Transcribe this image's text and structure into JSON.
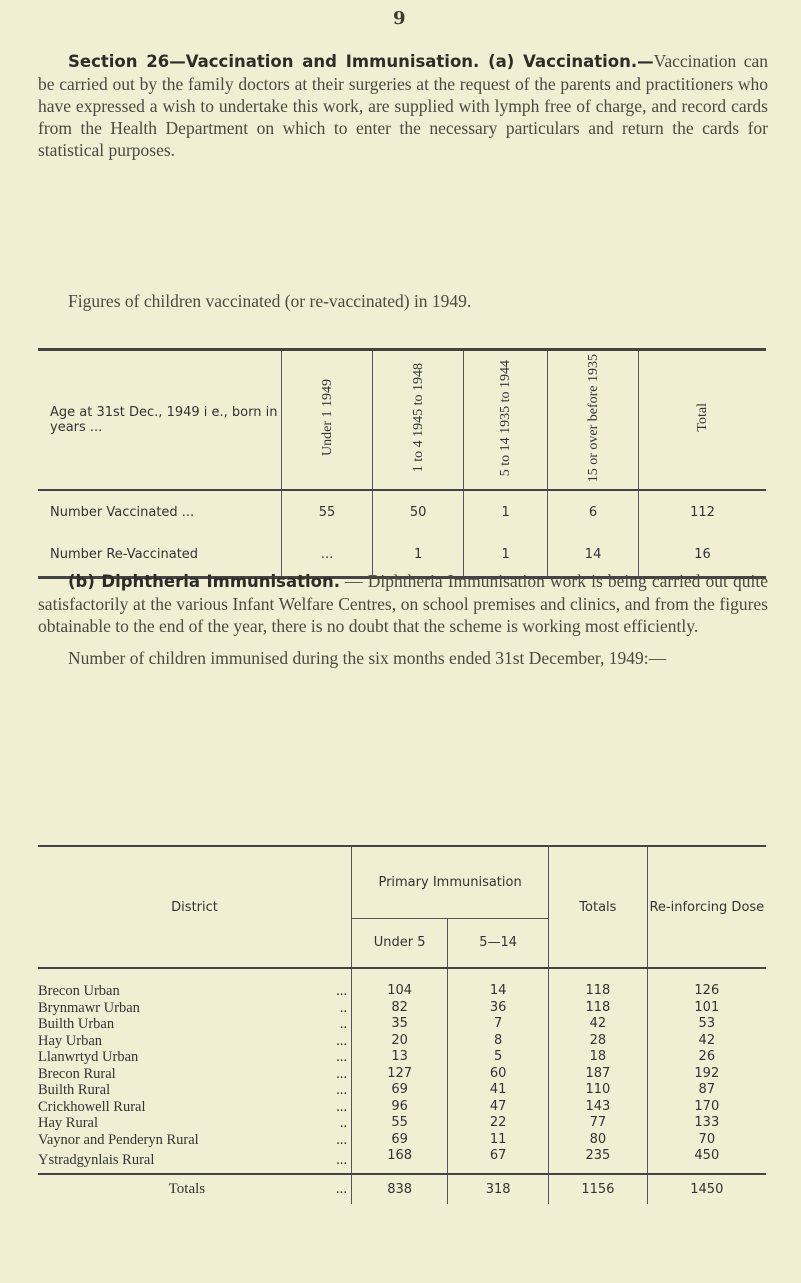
{
  "page_number": "9",
  "section_heading": "Section 26—Vaccination and Immunisation. (a) Vaccination.—",
  "para1": "Vaccination can be carried out by the family doctors at their surgeries at the request of the parents and practitioners who have expressed a wish to undertake this work, are supplied with lymph free of charge, and record cards from the Health Department on which to enter the necessary particulars and return the cards for statistical purposes.",
  "para2": "Figures of children vaccinated (or re-vaccinated) in 1949.",
  "table1": {
    "header_first": "Age at 31st Dec., 1949 i e., born in years ...",
    "columns": [
      "Under 1 1949",
      "1 to 4 1945 to 1948",
      "5 to 14 1935 to 1944",
      "15 or over before 1935",
      "Total"
    ],
    "rows": [
      {
        "label": "Number Vaccinated ...",
        "values": [
          "55",
          "50",
          "1",
          "6",
          "112"
        ]
      },
      {
        "label": "Number Re-Vaccinated",
        "values": [
          "...",
          "1",
          "1",
          "14",
          "16"
        ]
      }
    ]
  },
  "section_b_heading": "(b) Diphtheria Immunisation.",
  "para3": "— Diphtheria Immunisation work is being carried out quite satisfactorily at the various Infant Welfare Centres, on school premises and clinics, and from the figures obtainable to the end of the year, there is no doubt that the scheme is working most efficiently.",
  "para4": "Number of children immunised during the six months ended 31st December, 1949:—",
  "table2": {
    "h_district": "District",
    "h_primary": "Primary Immunisation",
    "h_under5": "Under 5",
    "h_5_14": "5—14",
    "h_totals": "Totals",
    "h_reinforcing": "Re-inforcing Dose",
    "rows": [
      {
        "d": "Brecon Urban",
        "dots": "...",
        "v": [
          "104",
          "14",
          "118",
          "126"
        ]
      },
      {
        "d": "Brynmawr Urban",
        "dots": "..",
        "v": [
          "82",
          "36",
          "118",
          "101"
        ]
      },
      {
        "d": "Builth Urban",
        "dots": "..",
        "v": [
          "35",
          "7",
          "42",
          "53"
        ]
      },
      {
        "d": "Hay Urban",
        "dots": "...",
        "v": [
          "20",
          "8",
          "28",
          "42"
        ]
      },
      {
        "d": "Llanwrtyd Urban",
        "dots": "...",
        "v": [
          "13",
          "5",
          "18",
          "26"
        ]
      },
      {
        "d": "Brecon Rural",
        "dots": "...",
        "v": [
          "127",
          "60",
          "187",
          "192"
        ]
      },
      {
        "d": "Builth Rural",
        "dots": "...",
        "v": [
          "69",
          "41",
          "110",
          "87"
        ]
      },
      {
        "d": "Crickhowell Rural",
        "dots": "...",
        "v": [
          "96",
          "47",
          "143",
          "170"
        ]
      },
      {
        "d": "Hay Rural",
        "dots": "..",
        "v": [
          "55",
          "22",
          "77",
          "133"
        ]
      },
      {
        "d": "Vaynor and Penderyn Rural",
        "dots": "...",
        "v": [
          "69",
          "11",
          "80",
          "70"
        ]
      },
      {
        "d": "Ystradgynlais Rural",
        "dots": "...",
        "v": [
          "168",
          "67",
          "235",
          "450"
        ]
      }
    ],
    "totals": {
      "label": "Totals",
      "dots": "...",
      "v": [
        "838",
        "318",
        "1156",
        "1450"
      ]
    }
  }
}
